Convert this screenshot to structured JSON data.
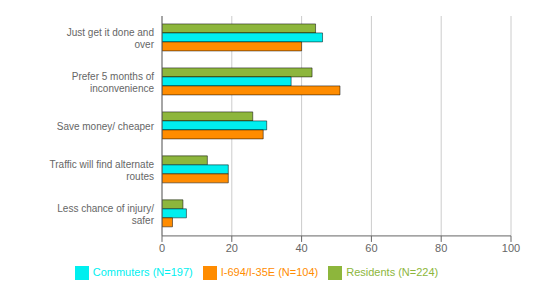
{
  "chart_data": {
    "type": "bar",
    "orientation": "horizontal",
    "categories": [
      "Just get it done and\nover",
      "Prefer 5 months of\ninconvenience",
      "Save money/ cheaper",
      "Traffic will find alternate\nroutes",
      "Less chance of injury/\nsafer"
    ],
    "series": [
      {
        "name": "Residents (N=224)",
        "color": "#8DB63C",
        "values": [
          44,
          43,
          26,
          13,
          6
        ]
      },
      {
        "name": "Commuters (N=197)",
        "color": "#00EFEF",
        "values": [
          46,
          37,
          30,
          19,
          7
        ]
      },
      {
        "name": "I-694/I-35E (N=104)",
        "color": "#FF8C00",
        "values": [
          40,
          51,
          29,
          19,
          3
        ]
      }
    ],
    "xlim": [
      0,
      100
    ],
    "xticks": [
      0,
      20,
      40,
      60,
      80,
      100
    ],
    "grid": true,
    "legend": "bottom"
  }
}
